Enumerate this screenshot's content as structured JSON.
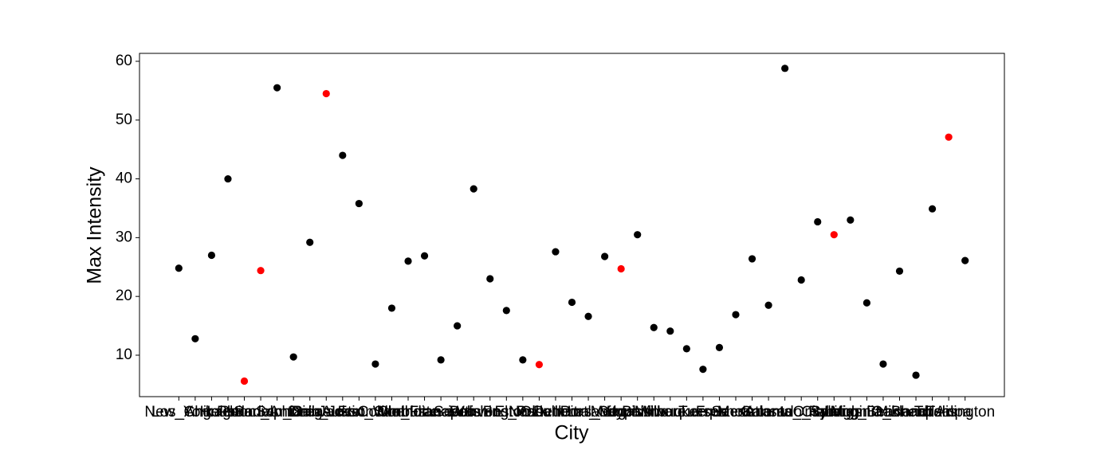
{
  "chart_data": {
    "type": "scatter",
    "x_label": "City",
    "y_label": "Max Intensity",
    "categories": [
      "New_York",
      "Los_Angeles",
      "Chicago",
      "Houston",
      "Phoenix",
      "Philadelphia",
      "San_Antonio",
      "San_Diego",
      "Dallas",
      "San_Jose",
      "Austin",
      "Jacksonville",
      "Fort_Worth",
      "Columbus",
      "Charlotte",
      "San_Francisco",
      "Indianapolis",
      "Seattle",
      "Denver",
      "Washington",
      "Boston",
      "El_Paso",
      "Nashville",
      "Detroit",
      "Oklahoma_City",
      "Portland",
      "Las_Vegas",
      "Memphis",
      "Louisville",
      "Baltimore",
      "Milwaukee",
      "Albuquerque",
      "Tucson",
      "Fresno",
      "Mesa",
      "Sacramento",
      "Atlanta",
      "Kansas_City",
      "Colorado_Springs",
      "Omaha",
      "Raleigh",
      "Miami",
      "Long_Beach",
      "Virginia_Beach",
      "Oakland",
      "Minneapolis",
      "Tulsa",
      "Tampa",
      "Arlington"
    ],
    "values": [
      24.8,
      12.8,
      27,
      40,
      5.6,
      24.4,
      55.5,
      9.7,
      29.2,
      54.5,
      44,
      35.8,
      8.5,
      18,
      26,
      26.9,
      9.2,
      15,
      38.3,
      23,
      17.6,
      9.2,
      8.4,
      27.6,
      19,
      16.6,
      26.8,
      24.7,
      30.5,
      14.7,
      14.1,
      11.1,
      7.6,
      11.3,
      16.9,
      26.4,
      18.5,
      58.8,
      22.8,
      32.7,
      30.5,
      33,
      18.9,
      8.5,
      24.3,
      6.6,
      34.9,
      47.1,
      26.1
    ],
    "colors": [
      "black",
      "black",
      "black",
      "black",
      "red",
      "red",
      "black",
      "black",
      "black",
      "red",
      "black",
      "black",
      "black",
      "black",
      "black",
      "black",
      "black",
      "black",
      "black",
      "black",
      "black",
      "black",
      "red",
      "black",
      "black",
      "black",
      "black",
      "red",
      "black",
      "black",
      "black",
      "black",
      "black",
      "black",
      "black",
      "black",
      "black",
      "black",
      "black",
      "black",
      "red",
      "black",
      "black",
      "black",
      "black",
      "black",
      "black",
      "red",
      "black"
    ],
    "ylim": [
      2.95,
      61.35
    ],
    "yticks": [
      10,
      20,
      30,
      40,
      50,
      60
    ]
  }
}
